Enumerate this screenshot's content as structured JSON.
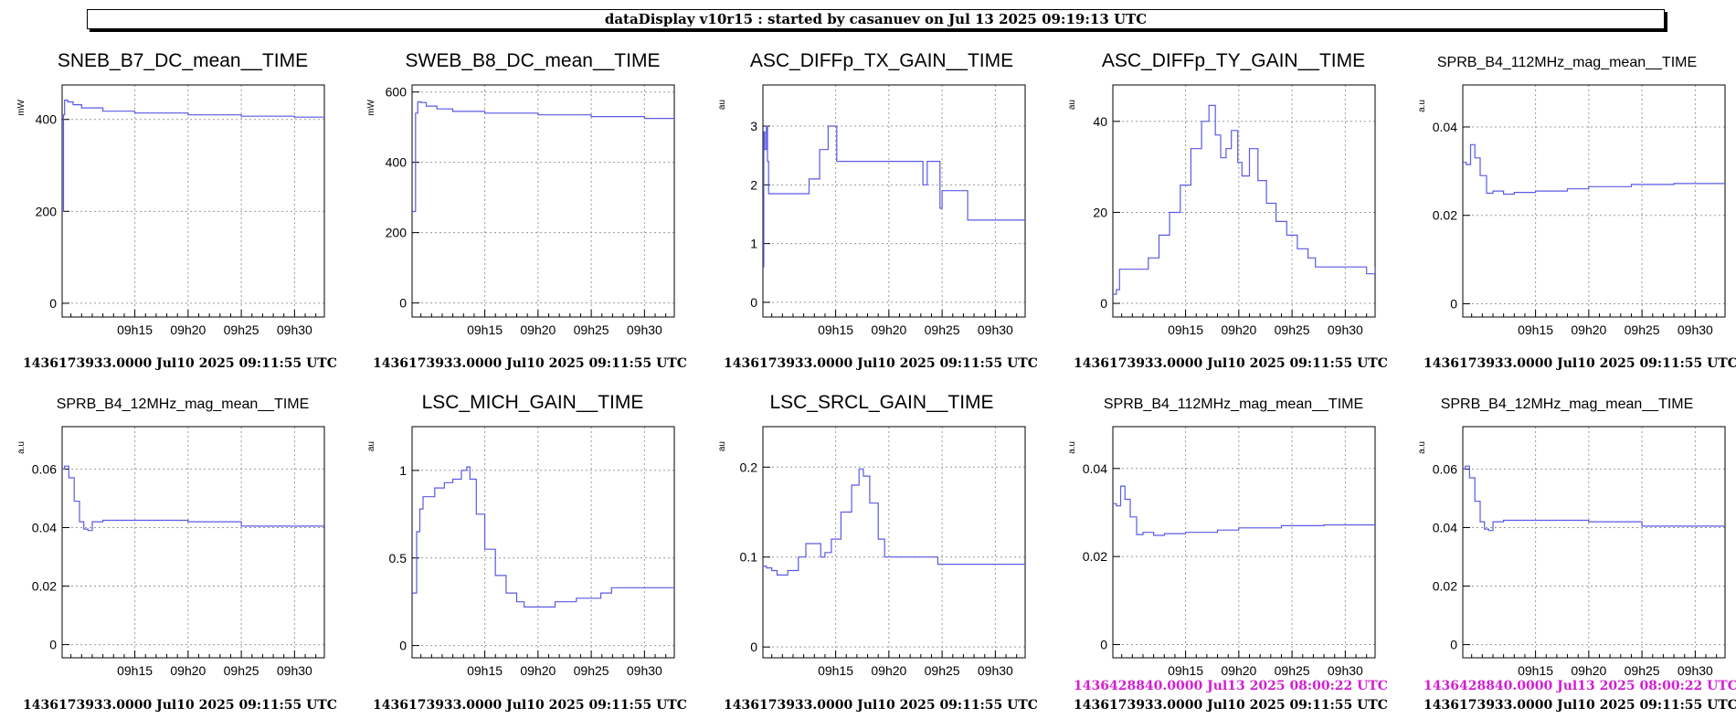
{
  "header": {
    "title": "dataDisplay v10r15 : started by casanuev on Jul 13 2025 09:19:13 UTC"
  },
  "colors": {
    "trace": "#5a5ae6",
    "reference_timestamp": "#d21ed2"
  },
  "chart_data": [
    {
      "type": "line",
      "title": "SNEB_B7_DC_mean__TIME",
      "ylabel": "mW",
      "xlim": [
        8.17,
        32.8
      ],
      "ylim": [
        -30,
        475
      ],
      "yticks": [
        0,
        200,
        400
      ],
      "ytick_labels": [
        "0",
        "200",
        "400"
      ],
      "xticks": [
        15,
        20,
        25,
        30
      ],
      "xtick_labels": [
        "09h15",
        "09h20",
        "09h25",
        "09h30"
      ],
      "x": [
        8.17,
        8.25,
        8.3,
        8.4,
        8.7,
        9.2,
        10,
        12,
        15,
        20,
        25,
        30,
        32.8
      ],
      "y": [
        200,
        200,
        410,
        442,
        438,
        432,
        425,
        418,
        414,
        410,
        407,
        405,
        405
      ],
      "timestamp": "1436173933.0000 Jul10 2025 09:11:55 UTC"
    },
    {
      "type": "line",
      "title": "SWEB_B8_DC_mean__TIME",
      "ylabel": "mW",
      "xlim": [
        8.17,
        32.8
      ],
      "ylim": [
        -40,
        620
      ],
      "yticks": [
        0,
        200,
        400,
        600
      ],
      "ytick_labels": [
        "0",
        "200",
        "400",
        "600"
      ],
      "xticks": [
        15,
        20,
        25,
        30
      ],
      "xtick_labels": [
        "09h15",
        "09h20",
        "09h25",
        "09h30"
      ],
      "x": [
        8.17,
        8.4,
        8.5,
        8.7,
        9,
        9.5,
        10.5,
        12,
        15,
        20,
        25,
        30,
        32.8
      ],
      "y": [
        260,
        260,
        540,
        572,
        570,
        560,
        552,
        545,
        540,
        535,
        530,
        525,
        525
      ],
      "timestamp": "1436173933.0000 Jul10 2025 09:11:55 UTC"
    },
    {
      "type": "line",
      "title": "ASC_DIFFp_TX_GAIN__TIME",
      "ylabel": "au",
      "xlim": [
        8.17,
        32.8
      ],
      "ylim": [
        -0.25,
        3.7
      ],
      "yticks": [
        0,
        1,
        2,
        3
      ],
      "ytick_labels": [
        "0",
        "1",
        "2",
        "3"
      ],
      "xticks": [
        15,
        20,
        25,
        30
      ],
      "xtick_labels": [
        "09h15",
        "09h20",
        "09h25",
        "09h30"
      ],
      "x": [
        8.17,
        8.25,
        8.35,
        8.5,
        8.6,
        8.7,
        10.6,
        11.3,
        12.5,
        13.5,
        14.3,
        14.8,
        15.1,
        15.5,
        16,
        22.8,
        23.2,
        23.6,
        24.2,
        24.8,
        25.0,
        25.5,
        26.2,
        27,
        27.4,
        32.8
      ],
      "y": [
        0.6,
        2.9,
        2.6,
        3.0,
        2.4,
        1.85,
        1.85,
        1.85,
        2.1,
        2.6,
        3.0,
        3.0,
        2.4,
        2.4,
        2.4,
        2.4,
        2.0,
        2.4,
        2.4,
        1.6,
        1.9,
        1.9,
        1.9,
        1.9,
        1.4,
        1.4
      ],
      "timestamp": "1436173933.0000 Jul10 2025 09:11:55 UTC"
    },
    {
      "type": "line",
      "title": "ASC_DIFFp_TY_GAIN__TIME",
      "ylabel": "au",
      "xlim": [
        8.17,
        32.8
      ],
      "ylim": [
        -3,
        48
      ],
      "yticks": [
        0,
        20,
        40
      ],
      "ytick_labels": [
        "0",
        "20",
        "40"
      ],
      "xticks": [
        15,
        20,
        25,
        30
      ],
      "xtick_labels": [
        "09h15",
        "09h20",
        "09h25",
        "09h30"
      ],
      "x": [
        8.17,
        8.5,
        8.8,
        10.5,
        11.5,
        12.5,
        13.5,
        14.5,
        15.5,
        16.5,
        17.2,
        17.8,
        18.3,
        18.8,
        19.3,
        19.9,
        20.3,
        21,
        21.8,
        22.6,
        23.5,
        24.5,
        25.5,
        26.5,
        27.2,
        30,
        31.5,
        32,
        32.8
      ],
      "y": [
        2,
        3,
        7.5,
        7.5,
        10,
        15,
        20,
        26,
        34,
        40,
        43.5,
        37,
        32,
        34,
        38,
        31,
        28,
        34,
        27,
        22,
        18,
        15,
        12,
        10,
        8,
        8,
        8,
        6.5,
        8
      ],
      "timestamp": "1436173933.0000 Jul10 2025 09:11:55 UTC"
    },
    {
      "type": "line",
      "title": "SPRB_B4_112MHz_mag_mean__TIME",
      "ylabel": "a.u",
      "xlim": [
        8.17,
        32.8
      ],
      "ylim": [
        -0.003,
        0.0495
      ],
      "yticks": [
        0,
        0.02,
        0.04
      ],
      "ytick_labels": [
        "0",
        "0.02",
        "0.04"
      ],
      "xticks": [
        15,
        20,
        25,
        30
      ],
      "xtick_labels": [
        "09h15",
        "09h20",
        "09h25",
        "09h30"
      ],
      "x": [
        8.17,
        8.5,
        8.9,
        9.3,
        9.8,
        10.4,
        11,
        12,
        13,
        15,
        18,
        20,
        24,
        28,
        32.8
      ],
      "y": [
        0.032,
        0.0315,
        0.036,
        0.033,
        0.029,
        0.025,
        0.0255,
        0.0248,
        0.0252,
        0.0255,
        0.026,
        0.0265,
        0.027,
        0.0272,
        0.0271
      ],
      "timestamp": "1436173933.0000 Jul10 2025 09:11:55 UTC"
    },
    {
      "type": "line",
      "title": "SPRB_B4_12MHz_mag_mean__TIME",
      "ylabel": "a.u",
      "xlim": [
        8.17,
        32.8
      ],
      "ylim": [
        -0.0045,
        0.0745
      ],
      "yticks": [
        0,
        0.02,
        0.04,
        0.06
      ],
      "ytick_labels": [
        "0",
        "0.02",
        "0.04",
        "0.06"
      ],
      "xticks": [
        15,
        20,
        25,
        30
      ],
      "xtick_labels": [
        "09h15",
        "09h20",
        "09h25",
        "09h30"
      ],
      "x": [
        8.17,
        8.4,
        8.8,
        9.3,
        9.8,
        10.2,
        10.6,
        11,
        12,
        15,
        20,
        25,
        32.8
      ],
      "y": [
        0.06,
        0.061,
        0.057,
        0.049,
        0.042,
        0.0395,
        0.039,
        0.042,
        0.0425,
        0.0425,
        0.042,
        0.0405,
        0.0402
      ],
      "timestamp": "1436173933.0000 Jul10 2025 09:11:55 UTC"
    },
    {
      "type": "line",
      "title": "LSC_MICH_GAIN__TIME",
      "ylabel": "au",
      "xlim": [
        8.17,
        32.8
      ],
      "ylim": [
        -0.07,
        1.25
      ],
      "yticks": [
        0,
        0.5,
        1
      ],
      "ytick_labels": [
        "0",
        "0.5",
        "1"
      ],
      "xticks": [
        15,
        20,
        25,
        30
      ],
      "xtick_labels": [
        "09h15",
        "09h20",
        "09h25",
        "09h30"
      ],
      "x": [
        8.17,
        8.5,
        8.6,
        8.9,
        9.2,
        9.6,
        10.3,
        11.2,
        12,
        12.8,
        13.3,
        13.6,
        14.2,
        15,
        16,
        17,
        18,
        18.7,
        19,
        21.5,
        21.6,
        23.5,
        23.6,
        25.8,
        25.9,
        26.8,
        26.9,
        32.8
      ],
      "y": [
        0.3,
        0.3,
        0.65,
        0.78,
        0.85,
        0.85,
        0.9,
        0.93,
        0.95,
        1.0,
        1.02,
        0.95,
        0.75,
        0.55,
        0.4,
        0.3,
        0.25,
        0.22,
        0.22,
        0.22,
        0.25,
        0.25,
        0.27,
        0.27,
        0.3,
        0.3,
        0.33,
        0.33
      ],
      "timestamp": "1436173933.0000 Jul10 2025 09:11:55 UTC"
    },
    {
      "type": "line",
      "title": "LSC_SRCL_GAIN__TIME",
      "ylabel": "au",
      "xlim": [
        8.17,
        32.8
      ],
      "ylim": [
        -0.012,
        0.245
      ],
      "yticks": [
        0,
        0.1,
        0.2
      ],
      "ytick_labels": [
        "0",
        "0.1",
        "0.2"
      ],
      "xticks": [
        15,
        20,
        25,
        30
      ],
      "xtick_labels": [
        "09h15",
        "09h20",
        "09h25",
        "09h30"
      ],
      "x": [
        8.17,
        8.5,
        9,
        9.5,
        10.5,
        11.5,
        12.2,
        13,
        13.6,
        14,
        14.6,
        15.5,
        16.5,
        17.2,
        17.6,
        18.2,
        19,
        19.6,
        19.8,
        24.4,
        24.6,
        32.8
      ],
      "y": [
        0.09,
        0.088,
        0.085,
        0.08,
        0.085,
        0.1,
        0.115,
        0.115,
        0.1,
        0.105,
        0.12,
        0.15,
        0.18,
        0.198,
        0.19,
        0.16,
        0.12,
        0.1,
        0.1,
        0.1,
        0.092,
        0.092
      ],
      "timestamp": "1436173933.0000 Jul10 2025 09:11:55 UTC"
    },
    {
      "type": "line",
      "title": "SPRB_B4_112MHz_mag_mean__TIME",
      "ylabel": "a.u",
      "xlim": [
        8.17,
        32.8
      ],
      "ylim": [
        -0.003,
        0.0495
      ],
      "yticks": [
        0,
        0.02,
        0.04
      ],
      "ytick_labels": [
        "0",
        "0.02",
        "0.04"
      ],
      "xticks": [
        15,
        20,
        25,
        30
      ],
      "xtick_labels": [
        "09h15",
        "09h20",
        "09h25",
        "09h30"
      ],
      "x": [
        8.17,
        8.5,
        8.9,
        9.3,
        9.8,
        10.4,
        11,
        12,
        13,
        15,
        18,
        20,
        24,
        28,
        32.8
      ],
      "y": [
        0.032,
        0.0315,
        0.036,
        0.033,
        0.029,
        0.025,
        0.0255,
        0.0248,
        0.0252,
        0.0255,
        0.026,
        0.0265,
        0.027,
        0.0272,
        0.0271
      ],
      "reference_timestamp": "1436428840.0000 Jul13 2025 08:00:22 UTC",
      "timestamp": "1436173933.0000 Jul10 2025 09:11:55 UTC"
    },
    {
      "type": "line",
      "title": "SPRB_B4_12MHz_mag_mean__TIME",
      "ylabel": "a.u",
      "xlim": [
        8.17,
        32.8
      ],
      "ylim": [
        -0.0045,
        0.0745
      ],
      "yticks": [
        0,
        0.02,
        0.04,
        0.06
      ],
      "ytick_labels": [
        "0",
        "0.02",
        "0.04",
        "0.06"
      ],
      "xticks": [
        15,
        20,
        25,
        30
      ],
      "xtick_labels": [
        "09h15",
        "09h20",
        "09h25",
        "09h30"
      ],
      "x": [
        8.17,
        8.4,
        8.8,
        9.3,
        9.8,
        10.2,
        10.6,
        11,
        12,
        15,
        20,
        25,
        32.8
      ],
      "y": [
        0.06,
        0.061,
        0.057,
        0.049,
        0.042,
        0.0395,
        0.039,
        0.042,
        0.0425,
        0.0425,
        0.042,
        0.0405,
        0.0402
      ],
      "reference_timestamp": "1436428840.0000 Jul13 2025 08:00:22 UTC",
      "timestamp": "1436173933.0000 Jul10 2025 09:11:55 UTC"
    }
  ]
}
